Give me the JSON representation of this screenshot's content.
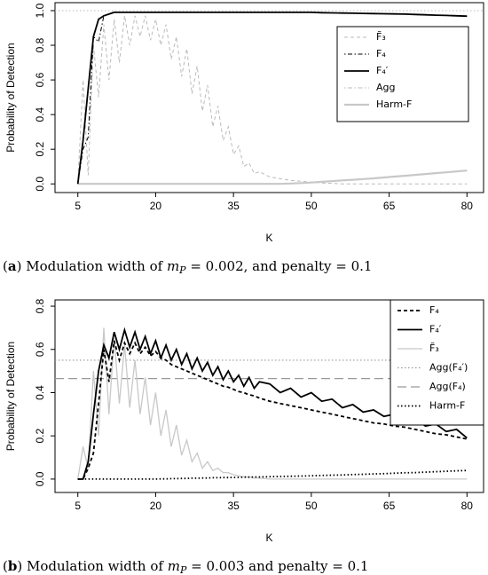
{
  "chart_data": [
    {
      "type": "line",
      "ylabel": "Probability of Detection",
      "xlabel": "K",
      "caption": [
        "(",
        "a",
        ") Modulation width of ",
        "m",
        "P",
        " = 0.002, and penalty = 0.1"
      ],
      "x": [
        5,
        6,
        7,
        8,
        9,
        10,
        11,
        12,
        13,
        14,
        15,
        16,
        17,
        18,
        19,
        20,
        21,
        22,
        23,
        24,
        25,
        26,
        27,
        28,
        29,
        30,
        31,
        32,
        33,
        34,
        35,
        36,
        37,
        38,
        39,
        40,
        42,
        44,
        46,
        48,
        50,
        52,
        54,
        56,
        58,
        60,
        62,
        64,
        66,
        68,
        70,
        72,
        74,
        76,
        78,
        80
      ],
      "xlim": [
        0.6,
        83.2
      ],
      "xticks": [
        5,
        20,
        35,
        50,
        65,
        80
      ],
      "ylim": [
        -0.05,
        1.046
      ],
      "yticks": [
        {
          "value": 0,
          "label": "0.0"
        },
        0.2,
        0.4,
        0.6,
        0.8,
        {
          "value": 1,
          "label": "1.0"
        }
      ],
      "legend": "top-right",
      "series": [
        {
          "name": "Agg",
          "color": "#bbbbbb",
          "style": "dotted",
          "width": 1,
          "value": 1.0,
          "legend_style": "dotdash"
        },
        {
          "name": "F̃₃",
          "color": "#bbbbbb",
          "style": "dashed",
          "width": 1,
          "values": [
            0,
            0.6,
            0.05,
            0.8,
            0.5,
            0.92,
            0.6,
            0.95,
            0.7,
            0.97,
            0.8,
            0.97,
            0.85,
            0.97,
            0.83,
            0.95,
            0.8,
            0.92,
            0.72,
            0.85,
            0.62,
            0.78,
            0.52,
            0.68,
            0.42,
            0.57,
            0.33,
            0.45,
            0.25,
            0.33,
            0.17,
            0.22,
            0.1,
            0.12,
            0.06,
            0.07,
            0.04,
            0.03,
            0.02,
            0.015,
            0.01,
            0.005,
            0.003,
            0,
            0,
            0,
            0,
            0,
            0,
            0,
            0,
            0,
            0,
            0,
            0,
            0
          ]
        },
        {
          "name": "Harm-F",
          "color": "#c8c8c8",
          "style": "solid",
          "width": 2.2,
          "values": [
            0,
            0,
            0,
            0,
            0,
            0,
            0,
            0,
            0,
            0,
            0,
            0,
            0,
            0,
            0,
            0,
            0,
            0,
            0,
            0,
            0,
            0,
            0,
            0,
            0,
            0,
            0,
            0,
            0,
            0,
            0,
            0,
            0,
            0,
            0,
            0,
            0,
            0,
            0.002,
            0.005,
            0.008,
            0.012,
            0.016,
            0.02,
            0.024,
            0.028,
            0.032,
            0.037,
            0.042,
            0.047,
            0.052,
            0.057,
            0.062,
            0.067,
            0.072,
            0.077
          ]
        },
        {
          "name": "F₄",
          "color": "#000000",
          "style": "dotdash",
          "width": 1,
          "values": [
            0,
            0.2,
            0.27,
            0.85,
            0.82,
            0.97,
            0.98,
            0.99,
            0.99,
            0.99,
            0.99,
            0.99,
            0.99,
            0.99,
            0.99,
            0.99,
            0.99,
            0.99,
            0.99,
            0.99,
            0.99,
            0.99,
            0.99,
            0.99,
            0.99,
            0.99,
            0.99,
            0.99,
            0.99,
            0.99,
            0.99,
            0.99,
            0.99,
            0.99,
            0.99,
            0.99,
            0.99,
            0.99,
            0.99,
            0.99,
            0.99,
            0.988,
            0.987,
            0.986,
            0.985,
            0.984,
            0.983,
            0.982,
            0.981,
            0.98,
            0.978,
            0.976,
            0.974,
            0.972,
            0.97,
            0.968
          ]
        },
        {
          "name": "F₄′",
          "color": "#000000",
          "style": "solid",
          "width": 1.8,
          "values": [
            0,
            0.25,
            0.55,
            0.85,
            0.95,
            0.97,
            0.98,
            0.99,
            0.99,
            0.99,
            0.99,
            0.99,
            0.99,
            0.99,
            0.99,
            0.99,
            0.99,
            0.99,
            0.99,
            0.99,
            0.99,
            0.99,
            0.99,
            0.99,
            0.99,
            0.99,
            0.99,
            0.99,
            0.99,
            0.99,
            0.99,
            0.99,
            0.99,
            0.99,
            0.99,
            0.99,
            0.99,
            0.99,
            0.99,
            0.99,
            0.99,
            0.988,
            0.987,
            0.986,
            0.985,
            0.984,
            0.983,
            0.982,
            0.981,
            0.98,
            0.978,
            0.976,
            0.974,
            0.972,
            0.97,
            0.968
          ]
        }
      ],
      "legend_order": [
        1,
        3,
        4,
        0,
        2
      ]
    },
    {
      "type": "line",
      "ylabel": "Probability of Detection",
      "xlabel": "K",
      "caption": [
        "(",
        "b",
        ") Modulation width of ",
        "m",
        "P",
        " = 0.003 and penalty = 0.1"
      ],
      "x": [
        5,
        6,
        7,
        8,
        9,
        10,
        11,
        12,
        13,
        14,
        15,
        16,
        17,
        18,
        19,
        20,
        21,
        22,
        23,
        24,
        25,
        26,
        27,
        28,
        29,
        30,
        31,
        32,
        33,
        34,
        35,
        36,
        37,
        38,
        39,
        40,
        42,
        44,
        46,
        48,
        50,
        52,
        54,
        56,
        58,
        60,
        62,
        64,
        66,
        68,
        70,
        72,
        74,
        76,
        78,
        80
      ],
      "xlim": [
        0.6,
        83.2
      ],
      "xticks": [
        5,
        20,
        35,
        50,
        65,
        80
      ],
      "ylim": [
        -0.062,
        0.829
      ],
      "yticks": [
        {
          "value": 0,
          "label": "0.0"
        },
        0.2,
        0.4,
        0.6,
        0.8
      ],
      "legend": "top-right",
      "series": [
        {
          "name": "Agg(F₄′)",
          "color": "#999999",
          "style": "dotted",
          "width": 1.2,
          "value": 0.55
        },
        {
          "name": "Agg(F₄)",
          "color": "#999999",
          "style": "longdash",
          "width": 1.2,
          "value": 0.465
        },
        {
          "name": "F̃₃",
          "color": "#c8c8c8",
          "style": "solid",
          "width": 1.3,
          "values": [
            0,
            0.15,
            0.05,
            0.5,
            0.2,
            0.7,
            0.3,
            0.65,
            0.35,
            0.62,
            0.33,
            0.55,
            0.3,
            0.47,
            0.25,
            0.4,
            0.2,
            0.32,
            0.15,
            0.25,
            0.11,
            0.18,
            0.08,
            0.12,
            0.05,
            0.08,
            0.04,
            0.05,
            0.03,
            0.03,
            0.02,
            0.015,
            0.01,
            0.01,
            0.005,
            0.005,
            0,
            0,
            0,
            0,
            0,
            0,
            0,
            0,
            0,
            0,
            0,
            0,
            0,
            0,
            0,
            0,
            0,
            0,
            0,
            0
          ]
        },
        {
          "name": "Harm-F",
          "color": "#000000",
          "style": "dotted",
          "width": 1.8,
          "values": [
            0,
            0,
            0,
            0,
            0,
            0,
            0,
            0,
            0,
            0,
            0,
            0,
            0,
            0,
            0,
            0,
            0.001,
            0.001,
            0.002,
            0.002,
            0.003,
            0.003,
            0.004,
            0.004,
            0.005,
            0.005,
            0.006,
            0.006,
            0.007,
            0.007,
            0.008,
            0.008,
            0.009,
            0.009,
            0.01,
            0.01,
            0.011,
            0.012,
            0.013,
            0.014,
            0.015,
            0.017,
            0.018,
            0.019,
            0.021,
            0.022,
            0.024,
            0.025,
            0.027,
            0.029,
            0.03,
            0.032,
            0.034,
            0.036,
            0.038,
            0.04
          ]
        },
        {
          "name": "F₄",
          "color": "#000000",
          "style": "dashed",
          "width": 1.8,
          "values": [
            0,
            0,
            0.05,
            0.12,
            0.35,
            0.6,
            0.45,
            0.64,
            0.55,
            0.63,
            0.58,
            0.63,
            0.58,
            0.61,
            0.57,
            0.59,
            0.56,
            0.55,
            0.53,
            0.52,
            0.51,
            0.5,
            0.49,
            0.48,
            0.47,
            0.46,
            0.45,
            0.44,
            0.43,
            0.425,
            0.415,
            0.405,
            0.4,
            0.39,
            0.385,
            0.375,
            0.36,
            0.35,
            0.34,
            0.33,
            0.32,
            0.31,
            0.3,
            0.29,
            0.28,
            0.27,
            0.26,
            0.255,
            0.245,
            0.24,
            0.23,
            0.22,
            0.21,
            0.205,
            0.195,
            0.185
          ]
        },
        {
          "name": "F₄′",
          "color": "#000000",
          "style": "solid",
          "width": 1.8,
          "values": [
            0,
            0,
            0.08,
            0.3,
            0.5,
            0.62,
            0.56,
            0.68,
            0.6,
            0.69,
            0.61,
            0.68,
            0.6,
            0.66,
            0.58,
            0.64,
            0.56,
            0.62,
            0.55,
            0.6,
            0.53,
            0.58,
            0.51,
            0.56,
            0.5,
            0.54,
            0.48,
            0.52,
            0.46,
            0.5,
            0.45,
            0.48,
            0.43,
            0.47,
            0.42,
            0.45,
            0.44,
            0.4,
            0.42,
            0.38,
            0.4,
            0.36,
            0.37,
            0.33,
            0.345,
            0.31,
            0.32,
            0.29,
            0.3,
            0.265,
            0.28,
            0.245,
            0.255,
            0.22,
            0.23,
            0.19
          ]
        }
      ],
      "legend_order": [
        4,
        5,
        2,
        0,
        1,
        3
      ]
    }
  ]
}
